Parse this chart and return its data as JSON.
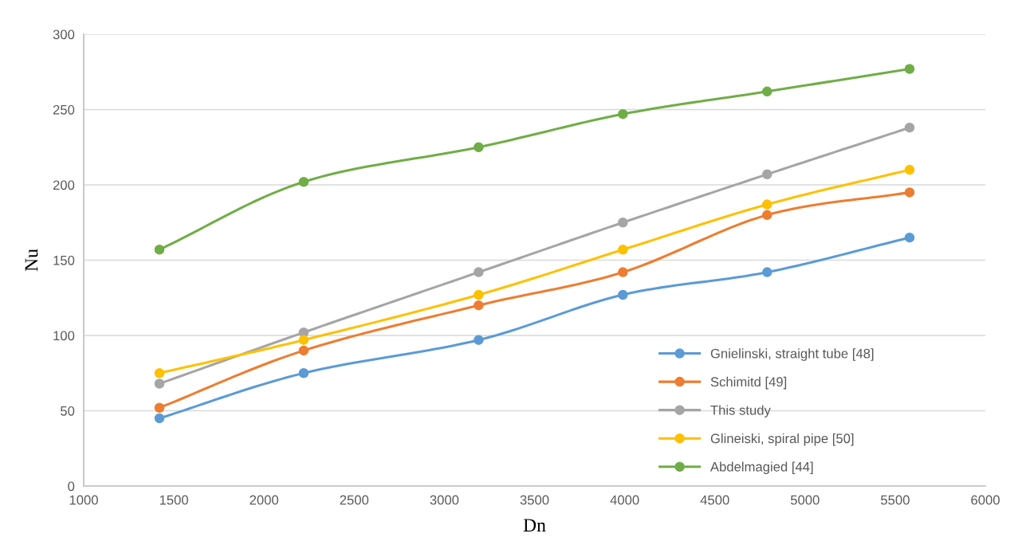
{
  "chart_data": {
    "type": "line",
    "xlabel": "Dn",
    "ylabel": "Nu",
    "xlim": [
      1000,
      6000
    ],
    "xticks": [
      1000,
      1500,
      2000,
      2500,
      3000,
      3500,
      4000,
      4500,
      5000,
      5500,
      6000
    ],
    "ylim": [
      0,
      300
    ],
    "yticks": [
      0,
      50,
      100,
      150,
      200,
      250,
      300
    ],
    "x": [
      1420,
      2220,
      3190,
      3990,
      4790,
      5580
    ],
    "grid": "y",
    "legend": "bottom right",
    "marker": "circle",
    "line_style": "solid",
    "series": [
      {
        "name": "Gnielinski, straight tube [48]",
        "color": "#5b9bd5",
        "values": [
          45,
          75,
          97,
          127,
          142,
          165
        ]
      },
      {
        "name": "Schimitd [49]",
        "color": "#ed7d31",
        "values": [
          52,
          90,
          120,
          142,
          180,
          195
        ]
      },
      {
        "name": "This study",
        "color": "#a5a5a5",
        "values": [
          68,
          102,
          142,
          175,
          207,
          238
        ]
      },
      {
        "name": "Glineiski, spiral pipe [50]",
        "color": "#ffc000",
        "values": [
          75,
          97,
          127,
          157,
          187,
          210
        ]
      },
      {
        "name": "Abdelmagied [44]",
        "color": "#70ad47",
        "values": [
          157,
          202,
          225,
          247,
          262,
          277
        ]
      }
    ]
  }
}
